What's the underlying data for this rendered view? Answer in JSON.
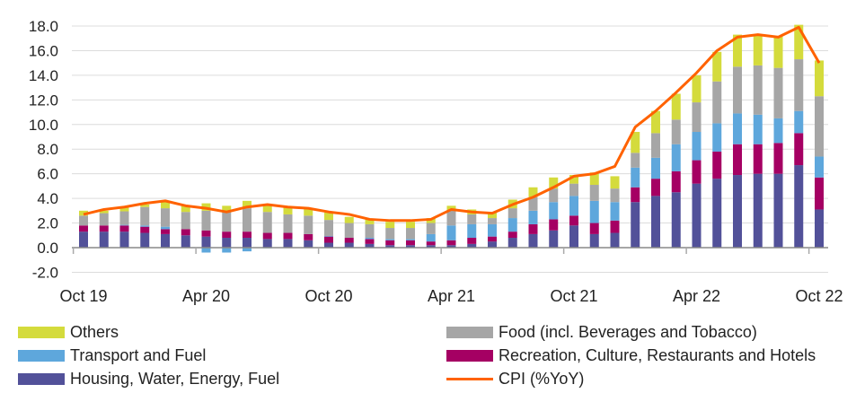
{
  "chart_data": {
    "type": "bar",
    "stacked": true,
    "title": "",
    "xlabel": "",
    "ylabel": "",
    "ylim": [
      -2,
      18
    ],
    "yticks": [
      "-2.0",
      "0.0",
      "2.0",
      "4.0",
      "6.0",
      "8.0",
      "10.0",
      "12.0",
      "14.0",
      "16.0",
      "18.0"
    ],
    "xtick_labels": [
      "Oct 19",
      "Apr 20",
      "Oct 20",
      "Apr 21",
      "Oct 21",
      "Apr 22",
      "Oct 22"
    ],
    "grid": true,
    "legend_placement": "bottom",
    "categories": [
      "Oct 19",
      "Nov 19",
      "Dec 19",
      "Jan 20",
      "Feb 20",
      "Mar 20",
      "Apr 20",
      "May 20",
      "Jun 20",
      "Jul 20",
      "Aug 20",
      "Sep 20",
      "Oct 20",
      "Nov 20",
      "Dec 20",
      "Jan 21",
      "Feb 21",
      "Mar 21",
      "Apr 21",
      "May 21",
      "Jun 21",
      "Jul 21",
      "Aug 21",
      "Sep 21",
      "Oct 21",
      "Nov 21",
      "Dec 21",
      "Jan 22",
      "Feb 22",
      "Mar 22",
      "Apr 22",
      "May 22",
      "Jun 22",
      "Jul 22",
      "Aug 22",
      "Sep 22",
      "Oct 22"
    ],
    "series": [
      {
        "name": "Housing, Water, Energy, Fuel",
        "color": "#525199",
        "values": [
          1.3,
          1.3,
          1.3,
          1.2,
          1.1,
          1.0,
          0.9,
          0.8,
          0.8,
          0.7,
          0.7,
          0.6,
          0.4,
          0.4,
          0.3,
          0.2,
          0.2,
          0.2,
          0.2,
          0.3,
          0.5,
          0.8,
          1.1,
          1.4,
          1.8,
          1.1,
          1.2,
          3.7,
          4.2,
          4.5,
          5.2,
          5.6,
          5.9,
          6.0,
          6.0,
          6.7,
          3.1
        ]
      },
      {
        "name": "Recreation, Culture, Restaurants and Hotels",
        "color": "#a50063",
        "values": [
          0.5,
          0.5,
          0.5,
          0.5,
          0.4,
          0.5,
          0.5,
          0.5,
          0.5,
          0.5,
          0.5,
          0.5,
          0.5,
          0.4,
          0.4,
          0.4,
          0.4,
          0.3,
          0.4,
          0.5,
          0.4,
          0.5,
          0.8,
          0.9,
          0.8,
          0.9,
          1.0,
          1.2,
          1.4,
          1.7,
          1.9,
          2.2,
          2.5,
          2.4,
          2.5,
          2.6,
          2.6
        ]
      },
      {
        "name": "Transport and Fuel",
        "color": "#5ea7dc",
        "values": [
          0,
          0,
          0.05,
          0.1,
          0.2,
          0,
          -0.4,
          -0.4,
          -0.3,
          -0.05,
          0,
          0,
          0.05,
          0,
          0.1,
          0.1,
          0.1,
          0.6,
          1.2,
          1.1,
          1.0,
          1.1,
          1.1,
          1.4,
          1.6,
          1.8,
          1.5,
          1.6,
          1.7,
          2.2,
          2.3,
          2.3,
          2.5,
          2.4,
          2.0,
          1.8,
          1.7
        ]
      },
      {
        "name": "Food (incl. Beverages and Tobacco)",
        "color": "#a6a6a6",
        "values": [
          0.8,
          1.0,
          1.1,
          1.5,
          1.5,
          1.4,
          1.6,
          1.6,
          1.9,
          1.7,
          1.5,
          1.5,
          1.3,
          1.2,
          1.1,
          0.9,
          0.9,
          0.9,
          1.2,
          0.8,
          0.5,
          0.8,
          1.1,
          1.1,
          1.0,
          1.3,
          1.1,
          1.2,
          2.0,
          2.0,
          2.4,
          3.4,
          3.8,
          4.0,
          4.1,
          4.2,
          4.9
        ]
      },
      {
        "name": "Others",
        "color": "#d4db3c",
        "values": [
          0.4,
          0.2,
          0.3,
          0.2,
          0.5,
          0.5,
          0.6,
          0.5,
          0.6,
          0.6,
          0.6,
          0.6,
          0.6,
          0.5,
          0.4,
          0.5,
          0.5,
          0.4,
          0.4,
          0.4,
          0.5,
          0.7,
          0.8,
          0.9,
          0.7,
          1.0,
          1.0,
          1.7,
          1.8,
          2.1,
          2.2,
          2.4,
          2.6,
          2.5,
          2.6,
          2.8,
          2.9
        ]
      }
    ],
    "line": {
      "name": "CPI (%YoY)",
      "color": "#ff6200",
      "values": [
        2.7,
        3.1,
        3.3,
        3.6,
        3.8,
        3.4,
        3.2,
        2.9,
        3.3,
        3.5,
        3.3,
        3.2,
        2.9,
        2.7,
        2.3,
        2.2,
        2.2,
        2.3,
        3.1,
        2.9,
        2.8,
        3.5,
        4.1,
        4.9,
        5.8,
        6.0,
        6.6,
        9.8,
        11.1,
        12.6,
        14.2,
        16.0,
        17.1,
        17.3,
        17.1,
        17.9,
        15.0
      ]
    }
  },
  "legend": [
    {
      "label": "Others",
      "color": "#d4db3c"
    },
    {
      "label": "Food (incl. Beverages and Tobacco)",
      "color": "#a6a6a6"
    },
    {
      "label": "Transport and Fuel",
      "color": "#5ea7dc"
    },
    {
      "label": "Recreation, Culture, Restaurants and Hotels",
      "color": "#a50063"
    },
    {
      "label": "Housing, Water, Energy, Fuel",
      "color": "#525199"
    },
    {
      "label": "CPI (%YoY)",
      "color": "#ff6200"
    }
  ]
}
